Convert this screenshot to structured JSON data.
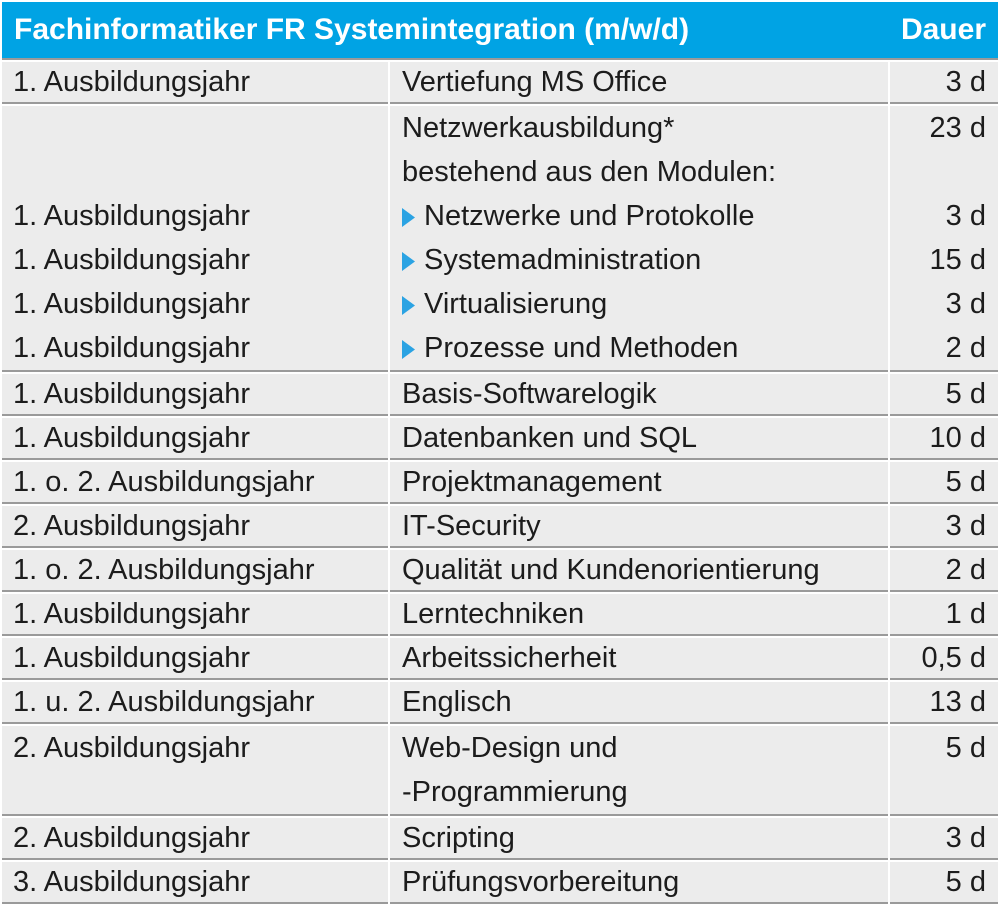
{
  "colors": {
    "header_bg": "#00A3E4",
    "header_text": "#FFFFFF",
    "row_bg": "#ECECEC",
    "divider": "#9A9A9A",
    "chevron": "#2BA3E3",
    "text": "#1C1C1C"
  },
  "table": {
    "header": {
      "title": "Fachinformatiker FR Systemintegration (m/w/d)",
      "duration": "Dauer"
    },
    "rows": [
      {
        "year": "1. Ausbildungsjahr",
        "subject": "Vertiefung MS Office",
        "duration": "3 d"
      },
      {
        "group": true,
        "lines": [
          {
            "year": "",
            "subject": "Netzwerkausbildung*",
            "duration": "23 d"
          },
          {
            "year": "",
            "subject": "bestehend aus den Modulen:",
            "duration": ""
          },
          {
            "year": "1. Ausbildungsjahr",
            "subject": "Netzwerke und Protokolle",
            "duration": "3 d",
            "module": true
          },
          {
            "year": "1. Ausbildungsjahr",
            "subject": "Systemadministration",
            "duration": "15 d",
            "module": true
          },
          {
            "year": "1. Ausbildungsjahr",
            "subject": "Virtualisierung",
            "duration": "3 d",
            "module": true
          },
          {
            "year": "1. Ausbildungsjahr",
            "subject": "Prozesse und Methoden",
            "duration": "2 d",
            "module": true
          }
        ]
      },
      {
        "year": "1. Ausbildungsjahr",
        "subject": "Basis-Softwarelogik",
        "duration": "5 d"
      },
      {
        "year": "1. Ausbildungsjahr",
        "subject": "Datenbanken und SQL",
        "duration": "10 d"
      },
      {
        "year": "1. o. 2. Ausbildungsjahr",
        "subject": "Projektmanagement",
        "duration": "5 d"
      },
      {
        "year": "2. Ausbildungsjahr",
        "subject": "IT-Security",
        "duration": "3 d"
      },
      {
        "year": "1. o. 2. Ausbildungsjahr",
        "subject": "Qualität und Kundenorientierung",
        "duration": "2 d"
      },
      {
        "year": "1. Ausbildungsjahr",
        "subject": "Lerntechniken",
        "duration": "1 d"
      },
      {
        "year": "1. Ausbildungsjahr",
        "subject": "Arbeitssicherheit",
        "duration": "0,5 d"
      },
      {
        "year": "1. u. 2. Ausbildungsjahr",
        "subject": "Englisch",
        "duration": "13 d"
      },
      {
        "group": true,
        "lines": [
          {
            "year": "2. Ausbildungsjahr",
            "subject": "Web-Design und",
            "duration": "5 d"
          },
          {
            "year": "",
            "subject": "-Programmierung",
            "duration": ""
          }
        ]
      },
      {
        "year": "2. Ausbildungsjahr",
        "subject": "Scripting",
        "duration": "3 d"
      },
      {
        "year": "3. Ausbildungsjahr",
        "subject": "Prüfungsvorbereitung",
        "duration": "5 d"
      }
    ]
  }
}
